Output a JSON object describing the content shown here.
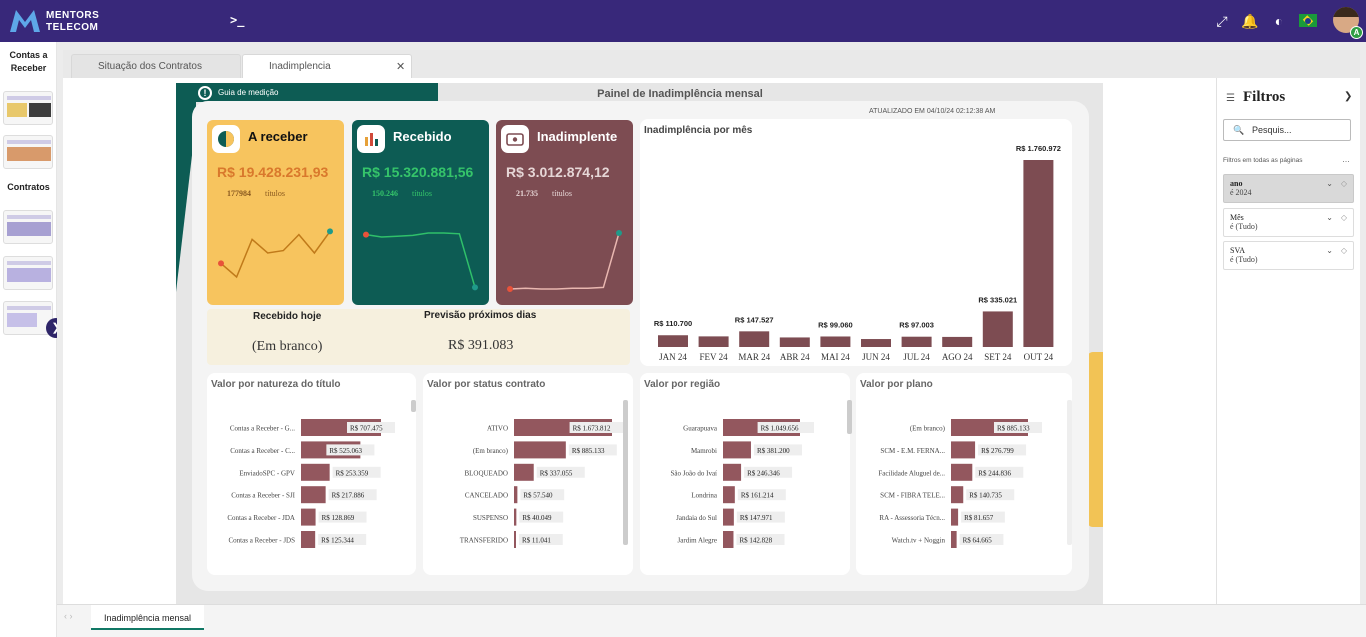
{
  "app": {
    "logo_line1": "MENTORS",
    "logo_line2": "TELECOM",
    "terminal_icon": "terminal-icon",
    "avatar_badge": "A"
  },
  "left_panel": {
    "section1": "Contas a Receber",
    "section2": "Contratos",
    "thumbnails": 5
  },
  "tabs": [
    {
      "label": "Situação dos Contratos"
    },
    {
      "label": "Inadimplencia"
    }
  ],
  "dashboard": {
    "guide_label": "Guia de medição",
    "title": "Painel de Inadimplência mensal",
    "updated": "ATUALIZADO EM 04/10/24 02:12:38 AM",
    "cards": {
      "receber": {
        "title": "A receber",
        "value": "R$ 19.428.231,93",
        "count": "177984",
        "count_label": "títulos",
        "color": "#f7c45e",
        "spark": [
          0.42,
          0.25,
          0.72,
          0.55,
          0.58,
          0.78,
          0.55,
          0.82
        ]
      },
      "recebido": {
        "title": "Recebido",
        "value": "R$ 15.320.881,56",
        "count": "150.246",
        "count_label": "títulos",
        "color": "#0d5c54",
        "spark": [
          0.78,
          0.75,
          0.76,
          0.77,
          0.8,
          0.8,
          0.79,
          0.12
        ]
      },
      "inadimplente": {
        "title": "Inadimplente",
        "value": "R$ 3.012.874,12",
        "count": "21.735",
        "count_label": "títulos",
        "color": "#7d4c52",
        "spark": [
          0.1,
          0.11,
          0.1,
          0.1,
          0.11,
          0.11,
          0.12,
          0.8
        ]
      }
    },
    "recebido_hoje": {
      "label": "Recebido hoje",
      "value": "(Em branco)"
    },
    "previsao": {
      "label": "Previsão próximos dias",
      "value": "R$ 391.083"
    }
  },
  "chart_data": [
    {
      "type": "bar",
      "title": "Inadimplência por mês",
      "categories": [
        "JAN 24",
        "FEV 24",
        "MAR 24",
        "ABR 24",
        "MAI 24",
        "JUN 24",
        "JUL 24",
        "AGO 24",
        "SET 24",
        "OUT 24"
      ],
      "values": [
        110700,
        100000,
        147527,
        90000,
        99060,
        75000,
        97003,
        95000,
        335021,
        1760972
      ],
      "data_labels": [
        "R$ 110.700",
        "",
        "R$ 147.527",
        "",
        "R$ 99.060",
        "",
        "R$ 97.003",
        "",
        "R$ 335.021",
        "R$ 1.760.972"
      ],
      "color": "#7d4c52"
    },
    {
      "type": "bar",
      "orientation": "horizontal",
      "title": "Valor por natureza do título",
      "categories": [
        "Contas a Receber - G...",
        "Contas a Receber - C...",
        "EnviadoSPC - GPV",
        "Contas a Receber - SJI",
        "Contas a Receber - JDA",
        "Contas a Receber - JDS"
      ],
      "values": [
        707475,
        525063,
        253359,
        217886,
        128869,
        125344
      ],
      "data_labels": [
        "R$ 707.475",
        "R$ 525.063",
        "R$ 253.359",
        "R$ 217.886",
        "R$ 128.869",
        "R$ 125.344"
      ]
    },
    {
      "type": "bar",
      "orientation": "horizontal",
      "title": "Valor por status contrato",
      "categories": [
        "ATIVO",
        "(Em branco)",
        "BLOQUEADO",
        "CANCELADO",
        "SUSPENSO",
        "TRANSFERIDO"
      ],
      "values": [
        1673812,
        885133,
        337055,
        57540,
        40049,
        11041
      ],
      "data_labels": [
        "R$ 1.673.812",
        "R$ 885.133",
        "R$ 337.055",
        "R$ 57.540",
        "R$ 40.049",
        "R$ 11.041"
      ]
    },
    {
      "type": "bar",
      "orientation": "horizontal",
      "title": "Valor por região",
      "categories": [
        "Guarapuava",
        "Mamrobi",
        "São João do Ivaí",
        "Londrina",
        "Jandaia do Sul",
        "Jardim Alegre"
      ],
      "values": [
        1049656,
        381200,
        246346,
        161214,
        147971,
        142828
      ],
      "data_labels": [
        "R$ 1.049.656",
        "R$ 381.200",
        "R$ 246.346",
        "R$ 161.214",
        "R$ 147.971",
        "R$ 142.828"
      ]
    },
    {
      "type": "bar",
      "orientation": "horizontal",
      "title": "Valor por plano",
      "categories": [
        "(Em branco)",
        "SCM - E.M. FERNA...",
        "Facilidade Aluguel de...",
        "SCM - FIBRA TELE...",
        "RA - Assessoria Técn...",
        "Watch.tv + Noggin"
      ],
      "values": [
        885133,
        276799,
        244836,
        140735,
        81657,
        64665
      ],
      "data_labels": [
        "R$ 885.133",
        "R$ 276.799",
        "R$ 244.836",
        "R$ 140.735",
        "R$ 81.657",
        "R$ 64.665"
      ]
    }
  ],
  "filters": {
    "title": "Filtros",
    "search_placeholder": "Pesquis...",
    "all_pages": "Filtros em todas as páginas",
    "items": [
      {
        "name": "ano",
        "value": "é 2024"
      },
      {
        "name": "Mês",
        "value": "é (Tudo)"
      },
      {
        "name": "SVA",
        "value": "é (Tudo)"
      }
    ]
  },
  "bottom": {
    "page_tab": "Inadimplência mensal"
  }
}
